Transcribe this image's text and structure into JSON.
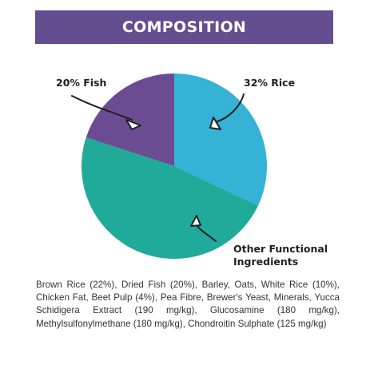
{
  "banner": {
    "title": "COMPOSITION"
  },
  "chart_data": {
    "type": "pie",
    "slices": [
      {
        "label": "32% Rice",
        "value": 32,
        "color": "#35b2d6"
      },
      {
        "label": "Other Functional Ingredients",
        "value": 48,
        "color": "#1faa99"
      },
      {
        "label": "20% Fish",
        "value": 20,
        "color": "#6b4c92"
      }
    ],
    "annotations": [
      "20% Fish",
      "32% Rice",
      "Other Functional",
      "Ingredients"
    ]
  },
  "composition_text": "Brown Rice (22%), Dried Fish (20%), Barley, Oats, White Rice (10%), Chicken Fat, Beet Pulp (4%), Pea Fibre, Brewer's Yeast, Minerals, Yucca Schidigera Extract (190 mg/kg), Glucosamine (180 mg/kg), Methylsulfonylmethane (180 mg/kg), Chondroitin Sulphate (125 mg/kg)",
  "colors": {
    "banner": "#634e90",
    "text": "#333333"
  }
}
